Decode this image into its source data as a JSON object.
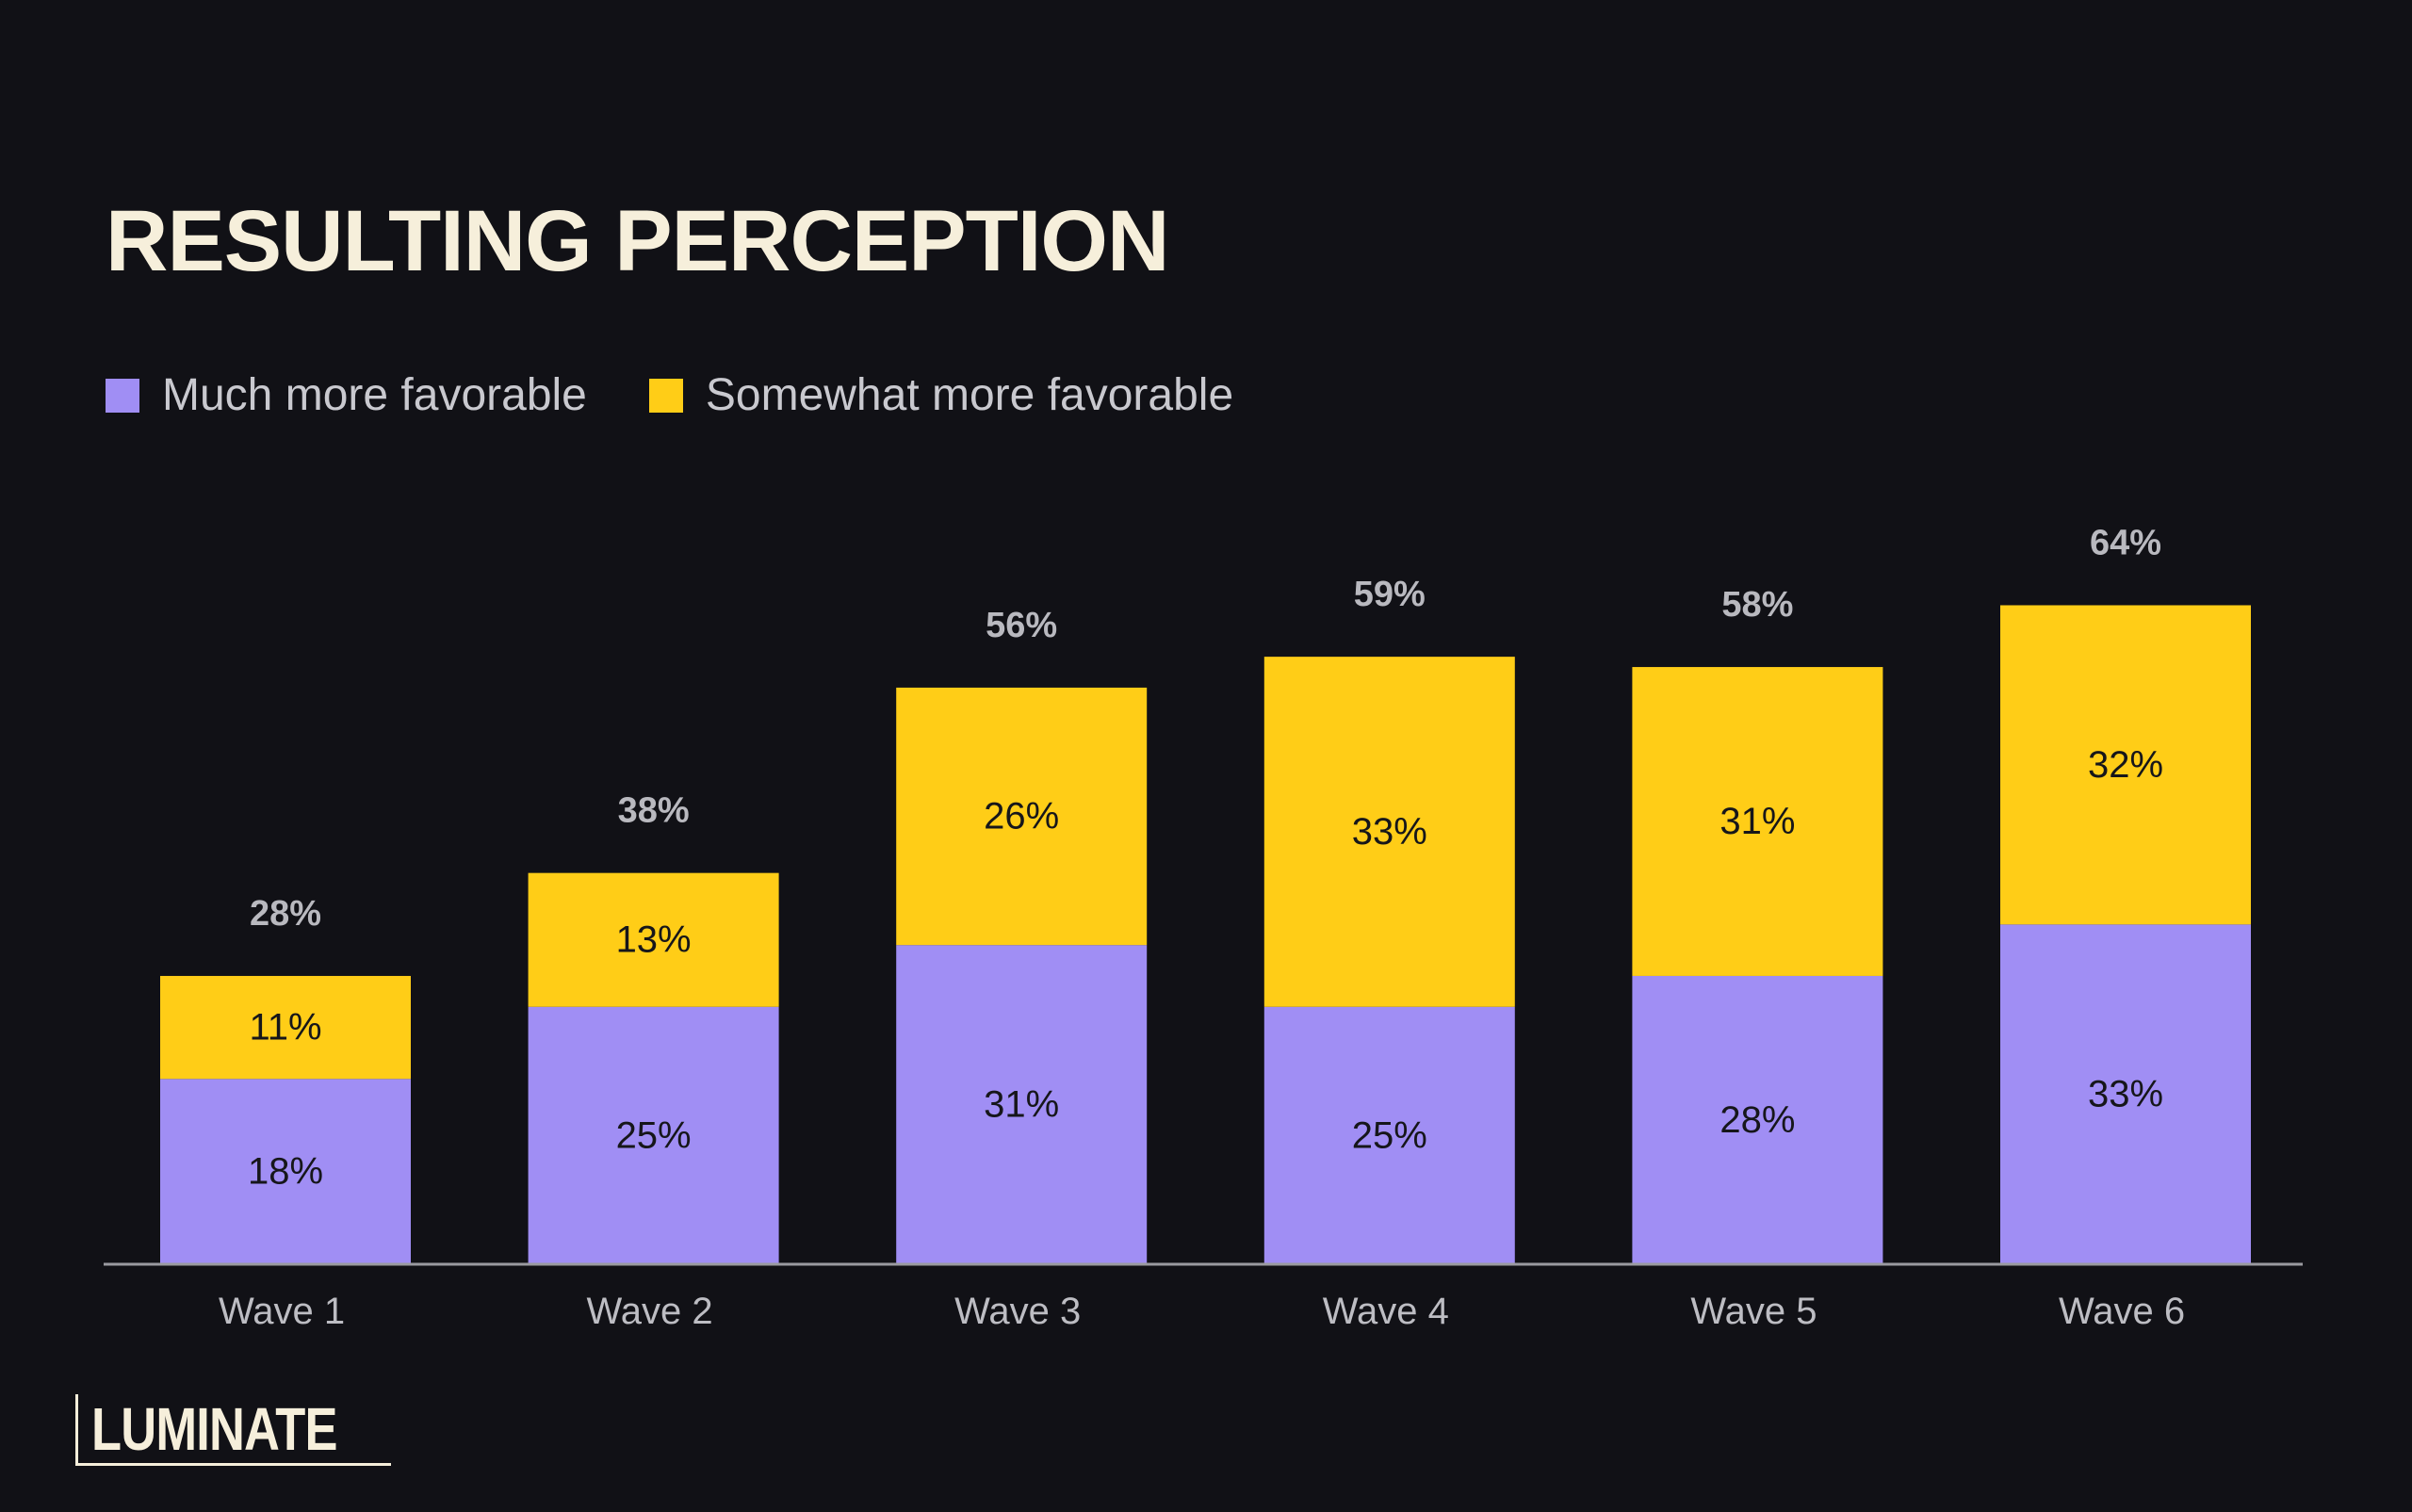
{
  "colors": {
    "background": "#111116",
    "much": "#a08ef4",
    "somewhat": "#ffcd17",
    "title": "#f6efdb",
    "axis": "#9a9aa0",
    "tick_label": "#bdbdc3",
    "total_label": "#b9b9bf",
    "segment_label": "#16161a"
  },
  "brand": {
    "logo_text": "LUMINATE"
  },
  "chart_data": {
    "type": "bar",
    "stacked": true,
    "title": "RESULTING PERCEPTION",
    "categories": [
      "Wave 1",
      "Wave 2",
      "Wave 3",
      "Wave 4",
      "Wave 5",
      "Wave 6"
    ],
    "series": [
      {
        "name": "Much more favorable",
        "values": [
          18,
          25,
          31,
          25,
          28,
          33
        ],
        "labels": [
          "18%",
          "25%",
          "31%",
          "25%",
          "28%",
          "33%"
        ],
        "color": "#a08ef4"
      },
      {
        "name": "Somewhat more favorable",
        "values": [
          11,
          13,
          26,
          33,
          31,
          32
        ],
        "labels": [
          "11%",
          "13%",
          "26%",
          "33%",
          "31%",
          "32%"
        ],
        "color": "#ffcd17"
      }
    ],
    "totals": [
      28,
      38,
      56,
      59,
      58,
      64
    ],
    "total_labels": [
      "28%",
      "38%",
      "56%",
      "59%",
      "58%",
      "64%"
    ],
    "xlabel": "",
    "ylabel": "",
    "ylim": [
      0,
      65
    ],
    "grid": false,
    "legend_position": "top-left"
  }
}
